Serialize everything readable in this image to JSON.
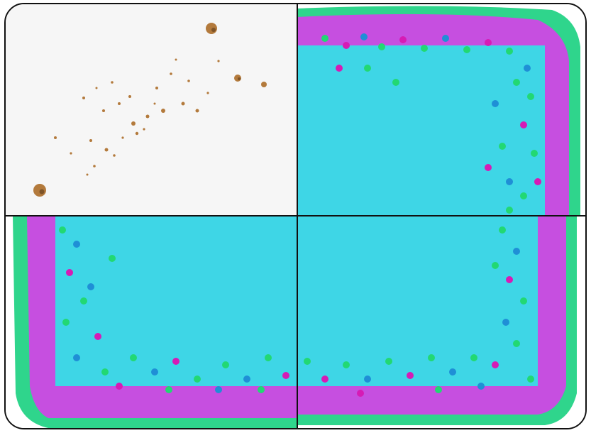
{
  "puzzle": {
    "grid": {
      "rows": 2,
      "cols": 2
    },
    "tiles": [
      {
        "name": "tile-top-left",
        "content": "cookie-crumbs",
        "movable": true
      },
      {
        "name": "tile-top-right",
        "content": "cake-top-right",
        "movable": true
      },
      {
        "name": "tile-bottom-left",
        "content": "cake-bottom-left",
        "movable": true
      },
      {
        "name": "tile-bottom-right",
        "content": "cake-bottom-right",
        "movable": true
      }
    ],
    "colors": {
      "frosting": "#3ed6e6",
      "border_icing": "#c64fe0",
      "sprinkle_green": "#22d873",
      "sprinkle_blue": "#1f8fd6",
      "sprinkle_magenta": "#d61bb5",
      "board": "#2fd58c",
      "crumb": "#b37a3c",
      "background": "#f6f6f6"
    }
  }
}
